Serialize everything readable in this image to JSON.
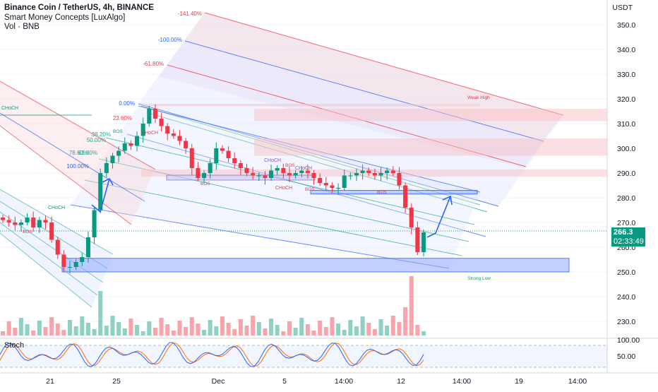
{
  "header": {
    "title": "Binance Coin / TetherUS, 4h, BINANCE",
    "indicator": "Smart Money Concepts [LuxAlgo]",
    "volume": "Vol · BNB"
  },
  "price_axis": {
    "unit": "USDT",
    "ticks": [
      350,
      340,
      330,
      320,
      310,
      300,
      290,
      280,
      270,
      260,
      250,
      240,
      230
    ],
    "tick_labels": [
      "350.0",
      "340.0",
      "330.0",
      "320.0",
      "310.0",
      "300.0",
      "290.0",
      "280.0",
      "270.0",
      "260.0",
      "250.0",
      "240.0",
      "230.0"
    ],
    "current_price": "266.3",
    "countdown": "02:33:49"
  },
  "time_axis": {
    "labels": [
      "21",
      "25",
      "Dec",
      "5",
      "14:00",
      "12",
      "14:00",
      "19",
      "14:00"
    ]
  },
  "stoch": {
    "title": "Stoch",
    "tick_labels": [
      "100.00",
      "50.00"
    ]
  },
  "fib_levels": [
    "-141.40%",
    "-100.00%",
    "-61.80%",
    "0.00%",
    "23.60%",
    "38.20%",
    "50.00%",
    "61.80%",
    "78.60%",
    "100.00%"
  ],
  "smc_labels": {
    "choch": "CHoCH",
    "bos": "BOS",
    "weak_high": "Weak High",
    "strong_low": "Strong Low"
  },
  "colors": {
    "bull": "#089981",
    "bear": "#f23645",
    "channel_blue": "#2962ff",
    "channel_red": "#f23645",
    "stoch_k": "#2962ff",
    "stoch_d": "#ff6d00"
  },
  "chart_data": {
    "type": "candlestick",
    "symbol": "BNBUSDT",
    "interval": "4h",
    "ylim": [
      225,
      355
    ],
    "approx_closes": [
      271,
      270,
      269,
      270,
      272,
      268,
      271,
      270,
      263,
      257,
      252,
      252,
      254,
      256,
      264,
      275,
      290,
      294,
      297,
      299,
      302,
      301,
      305,
      310,
      316,
      312,
      309,
      306,
      305,
      303,
      300,
      292,
      288,
      290,
      294,
      300,
      299,
      296,
      294,
      292,
      290,
      289,
      289,
      288,
      291,
      292,
      290,
      289,
      290,
      291,
      290,
      288,
      286,
      285,
      284,
      284,
      289,
      289,
      290,
      291,
      290,
      289,
      290,
      291,
      290,
      285,
      276,
      268,
      258,
      266
    ],
    "current_price": 266.3,
    "zones": [
      {
        "name": "Strong Low",
        "from": 250,
        "to": 255.5
      },
      {
        "name": "Weak High",
        "from": 317,
        "to": 318
      },
      {
        "name": "supply-1",
        "from": 311,
        "to": 316
      },
      {
        "name": "supply-2",
        "from": 297,
        "to": 304
      },
      {
        "name": "supply-3",
        "from": 288.5,
        "to": 291.5
      },
      {
        "name": "demand-1",
        "from": 281.5,
        "to": 283
      }
    ]
  }
}
